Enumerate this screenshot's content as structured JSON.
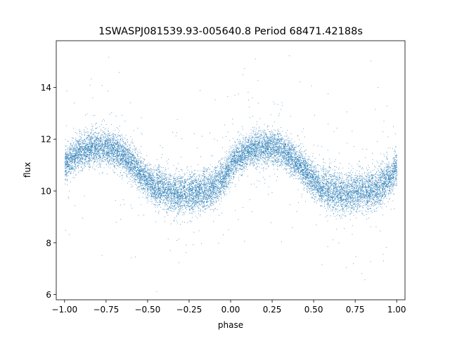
{
  "chart_data": {
    "type": "scatter",
    "title": "1SWASPJ081539.93-005640.8 Period 68471.42188s",
    "xlabel": "phase",
    "ylabel": "flux",
    "xlim": [
      -1.05,
      1.05
    ],
    "ylim": [
      5.8,
      15.8
    ],
    "xticks": [
      -1.0,
      -0.75,
      -0.5,
      -0.25,
      0.0,
      0.25,
      0.5,
      0.75,
      1.0
    ],
    "xtick_labels": [
      "−1.00",
      "−0.75",
      "−0.50",
      "−0.25",
      "0.00",
      "0.25",
      "0.50",
      "0.75",
      "1.00"
    ],
    "yticks": [
      6,
      8,
      10,
      12,
      14
    ],
    "ytick_labels": [
      "6",
      "8",
      "10",
      "12",
      "14"
    ],
    "grid": false,
    "legend": "none",
    "marker_color": "#1f77b4",
    "x_range": [
      -1.0,
      1.0
    ],
    "series": [
      {
        "values": [
          {
            "x": -1.0,
            "y": 11.0
          },
          {
            "x": -0.95,
            "y": 11.35
          },
          {
            "x": -0.9,
            "y": 11.55
          },
          {
            "x": -0.85,
            "y": 11.65
          },
          {
            "x": -0.8,
            "y": 11.7
          },
          {
            "x": -0.75,
            "y": 11.7
          },
          {
            "x": -0.7,
            "y": 11.6
          },
          {
            "x": -0.65,
            "y": 11.4
          },
          {
            "x": -0.6,
            "y": 11.1
          },
          {
            "x": -0.55,
            "y": 10.75
          },
          {
            "x": -0.5,
            "y": 10.4
          },
          {
            "x": -0.45,
            "y": 10.05
          },
          {
            "x": -0.4,
            "y": 9.85
          },
          {
            "x": -0.35,
            "y": 9.75
          },
          {
            "x": -0.3,
            "y": 9.75
          },
          {
            "x": -0.25,
            "y": 9.75
          },
          {
            "x": -0.2,
            "y": 9.8
          },
          {
            "x": -0.15,
            "y": 9.85
          },
          {
            "x": -0.1,
            "y": 10.0
          },
          {
            "x": -0.05,
            "y": 10.4
          },
          {
            "x": 0.0,
            "y": 11.0
          },
          {
            "x": 0.05,
            "y": 11.35
          },
          {
            "x": 0.1,
            "y": 11.55
          },
          {
            "x": 0.15,
            "y": 11.65
          },
          {
            "x": 0.2,
            "y": 11.7
          },
          {
            "x": 0.25,
            "y": 11.7
          },
          {
            "x": 0.3,
            "y": 11.6
          },
          {
            "x": 0.35,
            "y": 11.4
          },
          {
            "x": 0.4,
            "y": 11.1
          },
          {
            "x": 0.45,
            "y": 10.75
          },
          {
            "x": 0.5,
            "y": 10.4
          },
          {
            "x": 0.55,
            "y": 10.05
          },
          {
            "x": 0.6,
            "y": 9.85
          },
          {
            "x": 0.65,
            "y": 9.75
          },
          {
            "x": 0.7,
            "y": 9.75
          },
          {
            "x": 0.75,
            "y": 9.75
          },
          {
            "x": 0.8,
            "y": 9.8
          },
          {
            "x": 0.85,
            "y": 9.85
          },
          {
            "x": 0.9,
            "y": 10.0
          },
          {
            "x": 0.95,
            "y": 10.4
          },
          {
            "x": 1.0,
            "y": 11.0
          }
        ]
      }
    ]
  }
}
